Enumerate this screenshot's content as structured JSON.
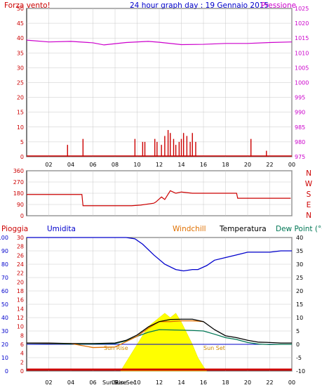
{
  "header": {
    "left_label": "Forza vento!",
    "title": "24 hour graph day : 19 Gennaio 2015",
    "right_label": "Pressione"
  },
  "colors": {
    "wind": "#cc0000",
    "pressure": "#cc00cc",
    "direction": "#cc0000",
    "rain": "#cc0000",
    "humidity": "#0000cc",
    "windchill": "#e07000",
    "temperature": "#000000",
    "dewpoint": "#007755",
    "sun": "#ffff00",
    "zero_line": "#0000cc"
  },
  "bottom_legend": {
    "rain": "Pioggia",
    "humidity": "Umidita",
    "windchill": "Windchill",
    "temperature": "Temperatura",
    "dewpoint": "Dew Point (°C"
  },
  "sun_labels": {
    "sunrise_inside": "Sun Rise",
    "sunset_inside": "Sun Set",
    "sunrise_axis": "Sun Rise",
    "sunset_axis": "Sun Sec"
  },
  "compass": [
    "N",
    "W",
    "S",
    "E",
    "N"
  ],
  "x_ticks": [
    "02",
    "04",
    "06",
    "08",
    "10",
    "12",
    "14",
    "16",
    "18",
    "20",
    "22",
    "00"
  ],
  "chart_data": [
    {
      "type": "line",
      "title": "24 hour graph day : 19 Gennaio 2015",
      "x_ticks": [
        "02",
        "04",
        "06",
        "08",
        "10",
        "12",
        "14",
        "16",
        "18",
        "20",
        "22",
        "00"
      ],
      "y_left_ticks": [
        "0",
        "5",
        "10",
        "15",
        "20",
        "25",
        "30",
        "35",
        "40",
        "45",
        "50"
      ],
      "y_right_ticks": [
        "975",
        "980",
        "985",
        "990",
        "995",
        "1000",
        "1005",
        "1010",
        "1015",
        "1020",
        "1025"
      ],
      "y_left_range": [
        0,
        50
      ],
      "y_right_range": [
        975,
        1025
      ],
      "series": [
        {
          "name": "Pressione",
          "axis": "right",
          "x": [
            0,
            2,
            4,
            6,
            7,
            9,
            11,
            12,
            14,
            16,
            18,
            20,
            22,
            24
          ],
          "values": [
            1014.3,
            1013.7,
            1013.9,
            1013.4,
            1012.7,
            1013.5,
            1013.9,
            1013.6,
            1012.8,
            1012.9,
            1013.2,
            1013.2,
            1013.5,
            1013.7
          ]
        },
        {
          "name": "Forza vento!",
          "axis": "left",
          "kind": "bars",
          "x": [
            3.7,
            5.1,
            9.8,
            10.5,
            10.7,
            11.6,
            11.8,
            12.2,
            12.5,
            12.8,
            13.0,
            13.3,
            13.5,
            13.8,
            14.0,
            14.2,
            14.5,
            14.8,
            15.0,
            15.3,
            20.3,
            21.7
          ],
          "values": [
            4,
            6,
            6,
            5,
            5,
            6,
            5,
            4,
            7,
            9,
            8,
            6,
            4,
            5,
            6,
            8,
            7,
            5,
            8,
            5,
            6,
            2
          ]
        }
      ]
    },
    {
      "type": "line",
      "y_ticks": [
        "0",
        "90",
        "180",
        "270",
        "360"
      ],
      "y_range": [
        0,
        360
      ],
      "x": [
        0,
        5,
        5.1,
        9.5,
        10.3,
        11.5,
        11.7,
        12.2,
        12.5,
        13,
        13.5,
        14,
        15,
        17,
        19,
        19.1,
        23.9
      ],
      "values": [
        170,
        170,
        80,
        80,
        85,
        100,
        110,
        150,
        130,
        200,
        180,
        190,
        180,
        180,
        180,
        140,
        140
      ]
    },
    {
      "type": "line",
      "y_left_ticks": [
        "0",
        "10",
        "20",
        "30",
        "40",
        "50",
        "60",
        "70",
        "80",
        "90",
        "100"
      ],
      "y_rain_ticks": [
        "0",
        "2",
        "4",
        "6",
        "8",
        "10",
        "12",
        "14",
        "16",
        "18",
        "20",
        "22",
        "24",
        "26",
        "28",
        "30"
      ],
      "y_right_ticks": [
        "-10",
        "-5",
        "0",
        "5",
        "10",
        "15",
        "20",
        "25",
        "30",
        "35",
        "40"
      ],
      "series": [
        {
          "name": "Umidita",
          "axis": "left",
          "x": [
            0,
            7,
            9,
            9.8,
            10.5,
            11.5,
            12.5,
            13.5,
            14.2,
            15,
            15.5,
            16.3,
            17,
            18,
            19,
            20,
            21,
            22,
            23,
            24
          ],
          "values": [
            100,
            100,
            100,
            99,
            95,
            87,
            80,
            76,
            75,
            76,
            76,
            79,
            83,
            85,
            87,
            89,
            89,
            89,
            90,
            90
          ]
        },
        {
          "name": "Temperatura",
          "axis": "right",
          "x": [
            0,
            2,
            4,
            6,
            8,
            9,
            10,
            11,
            12,
            13,
            14,
            15,
            16,
            17,
            18,
            19,
            20,
            21,
            22,
            23,
            24
          ],
          "values": [
            0.5,
            0.5,
            0.3,
            0.3,
            0.5,
            1.5,
            3.5,
            6.5,
            8.5,
            9.3,
            9.4,
            9.4,
            8.5,
            5.5,
            3.2,
            2.5,
            1.5,
            0.8,
            0.7,
            0.5,
            0.5
          ]
        },
        {
          "name": "Windchill",
          "axis": "right",
          "x": [
            0,
            4,
            6,
            8,
            9,
            10,
            11,
            12,
            13,
            14,
            15,
            15.5,
            16
          ],
          "values": [
            0.5,
            0.3,
            -1.2,
            -1.0,
            1.0,
            3.0,
            6.0,
            8.5,
            8.5,
            8.8,
            8.8,
            8.7,
            8.5
          ]
        },
        {
          "name": "Dew Point (°C",
          "axis": "right",
          "x": [
            0,
            2,
            4,
            6,
            8,
            9,
            10,
            11,
            12,
            13,
            14,
            15,
            16,
            17,
            18,
            19,
            20,
            21,
            22,
            23,
            24
          ],
          "values": [
            0.4,
            0.3,
            0.1,
            0.1,
            0.3,
            1.3,
            3.0,
            4.5,
            5.5,
            5.4,
            5.3,
            5.2,
            5.0,
            3.8,
            2.5,
            1.8,
            0.7,
            0.1,
            -0.1,
            0,
            0
          ]
        },
        {
          "name": "Sun",
          "kind": "area",
          "axis": "rain",
          "x": [
            8.5,
            9,
            10,
            11,
            12,
            12.5,
            13,
            13.5,
            14,
            15,
            15.5,
            16,
            16.3
          ],
          "values": [
            0,
            2,
            6,
            10,
            12,
            13,
            12,
            13,
            11,
            6,
            3,
            1,
            0
          ]
        }
      ]
    }
  ]
}
